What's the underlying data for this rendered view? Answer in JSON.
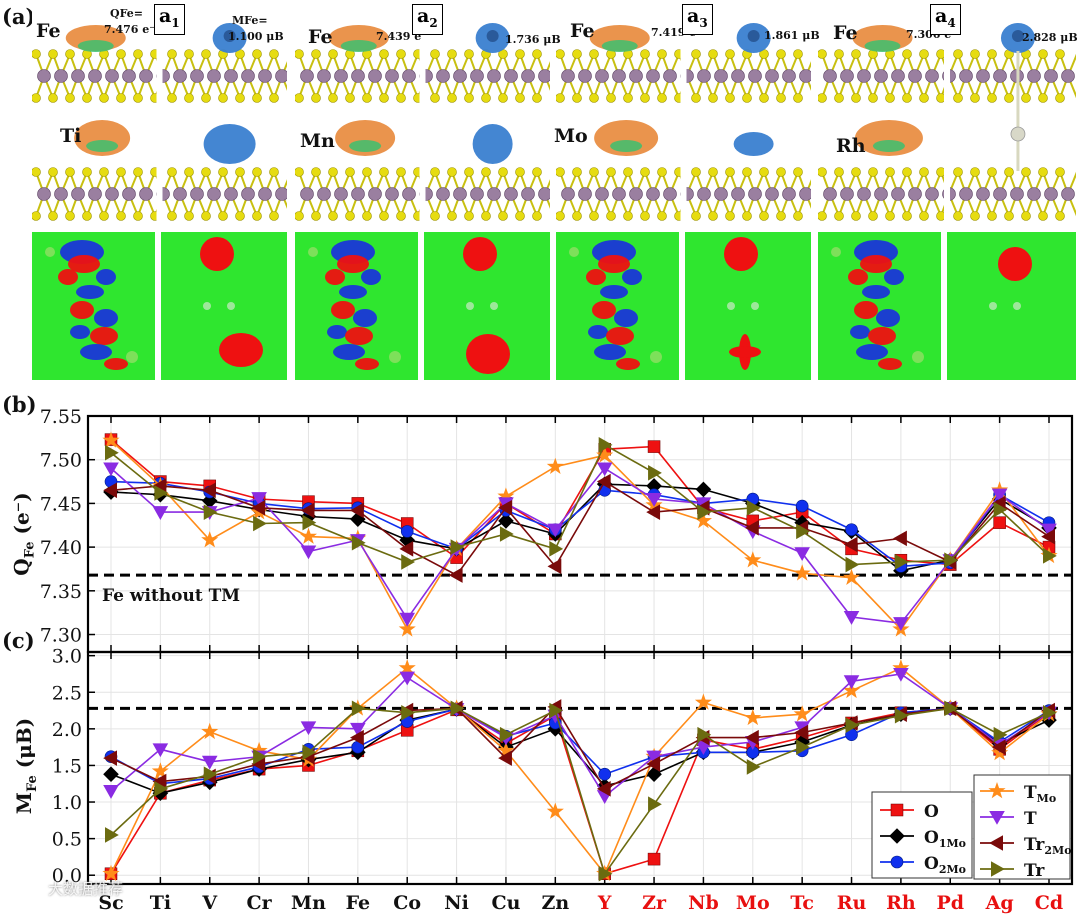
{
  "panel_a": {
    "label": "(a)",
    "panels": [
      {
        "tag": "a1",
        "base": "a",
        "sub": "1",
        "tm": "Ti",
        "q": "7.476 e⁻",
        "m": "1.100 μB",
        "q_prefix": "QFe=",
        "m_prefix": "MFe="
      },
      {
        "tag": "a2",
        "base": "a",
        "sub": "2",
        "tm": "Mn",
        "q": "7.439 e⁻",
        "m": "1.736 μB"
      },
      {
        "tag": "a3",
        "base": "a",
        "sub": "3",
        "tm": "Mo",
        "q": "7.419 e⁻",
        "m": "1.861 μB"
      },
      {
        "tag": "a4",
        "base": "a",
        "sub": "4",
        "tm": "Rh",
        "q": "7.306 e⁻",
        "m": "2.828 μB"
      }
    ],
    "fe_label": "Fe"
  },
  "colors": {
    "O": "#ee1111",
    "O1Mo": "#000000",
    "O2Mo": "#1030ee",
    "TMo": "#ff8c1a",
    "T": "#8a2be2",
    "Tr2Mo": "#7a0a0a",
    "Tr": "#6b6b10",
    "red_label": "#e81010",
    "black_label": "#111111"
  },
  "chart_data": [
    {
      "type": "line",
      "panel": "(b)",
      "ylabel": "QFe (e⁻)",
      "ylim": [
        7.28,
        7.55
      ],
      "yticks": [
        "7.30",
        "7.35",
        "7.40",
        "7.45",
        "7.50",
        "7.55"
      ],
      "ytick_values": [
        7.3,
        7.35,
        7.4,
        7.45,
        7.5,
        7.55
      ],
      "reference_line": 7.368,
      "reference_label": "Fe without TM",
      "categories": [
        "Sc",
        "Ti",
        "V",
        "Cr",
        "Mn",
        "Fe",
        "Co",
        "Ni",
        "Cu",
        "Zn",
        "Y",
        "Zr",
        "Nb",
        "Mo",
        "Tc",
        "Ru",
        "Rh",
        "Pd",
        "Ag",
        "Cd"
      ],
      "series": [
        {
          "key": "O",
          "name": "O",
          "marker": "square",
          "values": [
            7.523,
            7.475,
            7.47,
            7.455,
            7.452,
            7.45,
            7.427,
            7.388,
            7.45,
            7.415,
            7.512,
            7.515,
            7.445,
            7.43,
            7.44,
            7.398,
            7.385,
            7.38,
            7.428,
            7.4
          ]
        },
        {
          "key": "O1Mo",
          "name": "O1Mo",
          "marker": "diamond",
          "values": [
            7.463,
            7.46,
            7.453,
            7.443,
            7.435,
            7.432,
            7.408,
            7.398,
            7.43,
            7.415,
            7.472,
            7.47,
            7.466,
            7.45,
            7.428,
            7.418,
            7.373,
            7.385,
            7.455,
            7.422
          ]
        },
        {
          "key": "O2Mo",
          "name": "O2Mo",
          "marker": "circle",
          "values": [
            7.475,
            7.473,
            7.463,
            7.45,
            7.444,
            7.445,
            7.418,
            7.398,
            7.442,
            7.42,
            7.465,
            7.46,
            7.45,
            7.455,
            7.447,
            7.42,
            7.378,
            7.382,
            7.46,
            7.428
          ]
        },
        {
          "key": "TMo",
          "name": "TMo",
          "marker": "star",
          "values": [
            7.522,
            7.47,
            7.408,
            7.44,
            7.412,
            7.41,
            7.306,
            7.398,
            7.458,
            7.492,
            7.505,
            7.448,
            7.43,
            7.385,
            7.37,
            7.365,
            7.306,
            7.385,
            7.465,
            7.39
          ]
        },
        {
          "key": "T",
          "name": "T",
          "marker": "tri-down",
          "values": [
            7.49,
            7.44,
            7.44,
            7.456,
            7.395,
            7.408,
            7.318,
            7.398,
            7.45,
            7.42,
            7.49,
            7.455,
            7.45,
            7.418,
            7.393,
            7.32,
            7.313,
            7.385,
            7.46,
            7.42
          ]
        },
        {
          "key": "Tr2Mo",
          "name": "Tr2Mo",
          "marker": "tri-left",
          "values": [
            7.465,
            7.47,
            7.465,
            7.445,
            7.442,
            7.442,
            7.398,
            7.368,
            7.445,
            7.378,
            7.475,
            7.44,
            7.445,
            7.422,
            7.422,
            7.403,
            7.41,
            7.383,
            7.45,
            7.412
          ]
        },
        {
          "key": "Tr",
          "name": "Tr",
          "marker": "tri-right",
          "values": [
            7.508,
            7.462,
            7.44,
            7.427,
            7.428,
            7.405,
            7.383,
            7.4,
            7.415,
            7.398,
            7.517,
            7.485,
            7.44,
            7.445,
            7.418,
            7.38,
            7.383,
            7.385,
            7.443,
            7.39
          ]
        }
      ]
    },
    {
      "type": "line",
      "panel": "(c)",
      "ylabel": "MFe (μB)",
      "ylim": [
        -0.12,
        3.05
      ],
      "yticks": [
        "0.0",
        "0.5",
        "1.0",
        "1.5",
        "2.0",
        "2.5",
        "3.0"
      ],
      "ytick_values": [
        0.0,
        0.5,
        1.0,
        1.5,
        2.0,
        2.5,
        3.0
      ],
      "reference_line": 2.28,
      "categories": [
        "Sc",
        "Ti",
        "V",
        "Cr",
        "Mn",
        "Fe",
        "Co",
        "Ni",
        "Cu",
        "Zn",
        "Y",
        "Zr",
        "Nb",
        "Mo",
        "Tc",
        "Ru",
        "Rh",
        "Pd",
        "Ag",
        "Cd"
      ],
      "categories_red": [
        "Y",
        "Zr",
        "Nb",
        "Mo",
        "Tc",
        "Ru",
        "Rh",
        "Pd",
        "Ag",
        "Cd"
      ],
      "series": [
        {
          "key": "O",
          "name": "O",
          "marker": "square",
          "values": [
            0.02,
            1.12,
            1.3,
            1.45,
            1.5,
            1.7,
            1.98,
            2.26,
            1.8,
            2.18,
            0.02,
            0.22,
            1.85,
            1.72,
            1.88,
            2.08,
            2.22,
            2.28,
            1.72,
            2.22
          ]
        },
        {
          "key": "O1Mo",
          "name": "O1Mo",
          "marker": "diamond",
          "values": [
            1.38,
            1.12,
            1.27,
            1.45,
            1.58,
            1.68,
            2.12,
            2.27,
            1.75,
            2.0,
            1.22,
            1.38,
            1.68,
            1.68,
            1.82,
            2.05,
            2.2,
            2.28,
            1.8,
            2.12
          ]
        },
        {
          "key": "O2Mo",
          "name": "O2Mo",
          "marker": "circle",
          "values": [
            1.62,
            1.25,
            1.32,
            1.48,
            1.72,
            1.75,
            2.1,
            2.27,
            1.9,
            2.08,
            1.38,
            1.62,
            1.68,
            1.68,
            1.7,
            1.92,
            2.22,
            2.28,
            1.82,
            2.25
          ]
        },
        {
          "key": "TMo",
          "name": "TMo",
          "marker": "star",
          "values": [
            0.02,
            1.42,
            1.96,
            1.7,
            1.58,
            2.28,
            2.83,
            2.28,
            1.7,
            0.87,
            0.02,
            1.62,
            2.36,
            2.15,
            2.2,
            2.52,
            2.83,
            2.28,
            1.67,
            2.2
          ]
        },
        {
          "key": "T",
          "name": "T",
          "marker": "tri-down",
          "values": [
            1.15,
            1.72,
            1.55,
            1.62,
            2.02,
            2.0,
            2.7,
            2.27,
            1.88,
            2.18,
            1.08,
            1.62,
            1.75,
            1.82,
            2.02,
            2.65,
            2.75,
            2.28,
            1.78,
            2.22
          ]
        },
        {
          "key": "Tr2Mo",
          "name": "Tr2Mo",
          "marker": "tri-left",
          "values": [
            1.6,
            1.28,
            1.35,
            1.52,
            1.62,
            1.88,
            2.25,
            2.28,
            1.6,
            2.3,
            1.18,
            1.52,
            1.88,
            1.88,
            1.95,
            2.08,
            2.2,
            2.28,
            1.75,
            2.25
          ]
        },
        {
          "key": "Tr",
          "name": "Tr",
          "marker": "tri-right",
          "values": [
            0.55,
            1.18,
            1.38,
            1.62,
            1.68,
            2.28,
            2.22,
            2.28,
            1.92,
            2.25,
            0.02,
            0.97,
            1.92,
            1.48,
            1.75,
            2.05,
            2.18,
            2.28,
            1.92,
            2.22
          ]
        }
      ]
    }
  ],
  "legend": {
    "col1": [
      {
        "key": "O",
        "base": "O",
        "sub": ""
      },
      {
        "key": "O1Mo",
        "base": "O",
        "sub": "1Mo"
      },
      {
        "key": "O2Mo",
        "base": "O",
        "sub": "2Mo"
      }
    ],
    "col2": [
      {
        "key": "TMo",
        "base": "T",
        "sub": "Mo"
      },
      {
        "key": "T",
        "base": "T",
        "sub": ""
      },
      {
        "key": "Tr2Mo",
        "base": "Tr",
        "sub": "2Mo"
      },
      {
        "key": "Tr",
        "base": "Tr",
        "sub": ""
      }
    ]
  },
  "panel_labels": {
    "b": "(b)",
    "c": "(c)"
  },
  "ylabel_b": {
    "base": "Q",
    "sub": "Fe",
    "unit": " (e⁻)"
  },
  "ylabel_c": {
    "base": "M",
    "sub": "Fe",
    "unit": " (μB)"
  },
  "watermark": "大数据推荐"
}
